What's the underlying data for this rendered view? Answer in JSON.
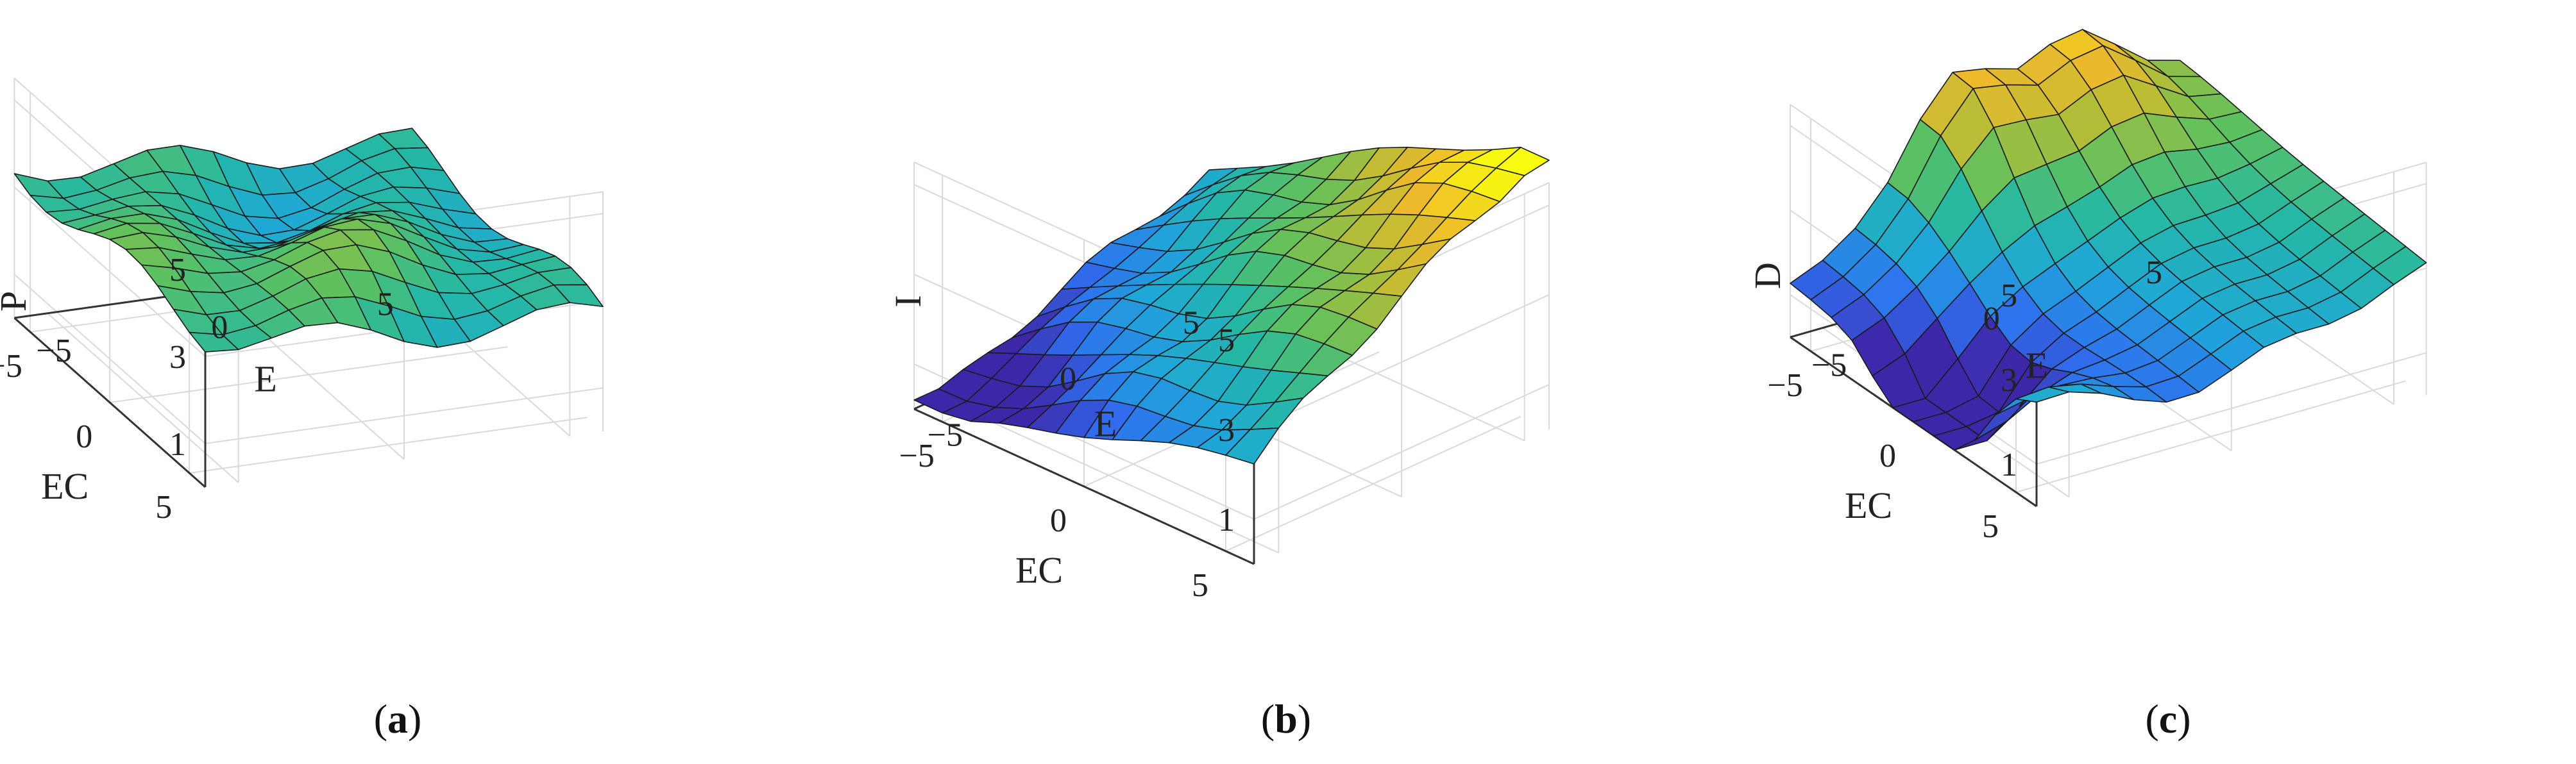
{
  "chart_data": [
    {
      "type": "surface",
      "panel": "a",
      "caption_letter": "a",
      "xlabel": "E",
      "ylabel": "EC",
      "zlabel": "P",
      "x_ticks": [
        "−5",
        "0",
        "5"
      ],
      "y_ticks": [
        "5",
        "0",
        "−5"
      ],
      "z_ticks": [
        "1",
        "3",
        "5"
      ],
      "xlim": [
        -6,
        6
      ],
      "ylim": [
        -6,
        6
      ],
      "zlim": [
        0,
        5.5
      ],
      "grid": true,
      "colormap": [
        "#3e26a8",
        "#2f6ff0",
        "#1fa8d8",
        "#25b8a4",
        "#5fc15e",
        "#b8bd36",
        "#f0b92c",
        "#f9fb0e"
      ],
      "description_of_shape": "wavy ridge surface",
      "z_values_sample": [
        3.0,
        3.6,
        3.9,
        3.7,
        3.5,
        3.2,
        2.9,
        2.6
      ]
    },
    {
      "type": "surface",
      "panel": "b",
      "caption_letter": "b",
      "xlabel": "E",
      "ylabel": "EC",
      "zlabel": "I",
      "x_ticks": [
        "−5",
        "0",
        "5"
      ],
      "y_ticks": [
        "5",
        "0",
        "−5"
      ],
      "z_ticks": [
        "1",
        "3",
        "5"
      ],
      "xlim": [
        -6,
        6
      ],
      "ylim": [
        -6,
        6
      ],
      "zlim": [
        0,
        5.5
      ],
      "grid": true,
      "colormap": [
        "#3e26a8",
        "#2f6ff0",
        "#1fa8d8",
        "#25b8a4",
        "#5fc15e",
        "#b8bd36",
        "#f0b92c",
        "#f9fb0e"
      ]
    },
    {
      "type": "surface",
      "panel": "c",
      "caption_letter": "c",
      "xlabel": "E",
      "ylabel": "EC",
      "zlabel": "D",
      "x_ticks": [
        "−5",
        "0",
        "5"
      ],
      "y_ticks": [
        "5",
        "0",
        "−5"
      ],
      "z_ticks": [
        "1",
        "3",
        "5"
      ],
      "xlim": [
        -6,
        6
      ],
      "ylim": [
        -6,
        6
      ],
      "zlim": [
        0,
        5.5
      ],
      "grid": true,
      "colormap": [
        "#3e26a8",
        "#2f6ff0",
        "#1fa8d8",
        "#25b8a4",
        "#5fc15e",
        "#b8bd36",
        "#f0b92c",
        "#f9fb0e"
      ]
    }
  ]
}
